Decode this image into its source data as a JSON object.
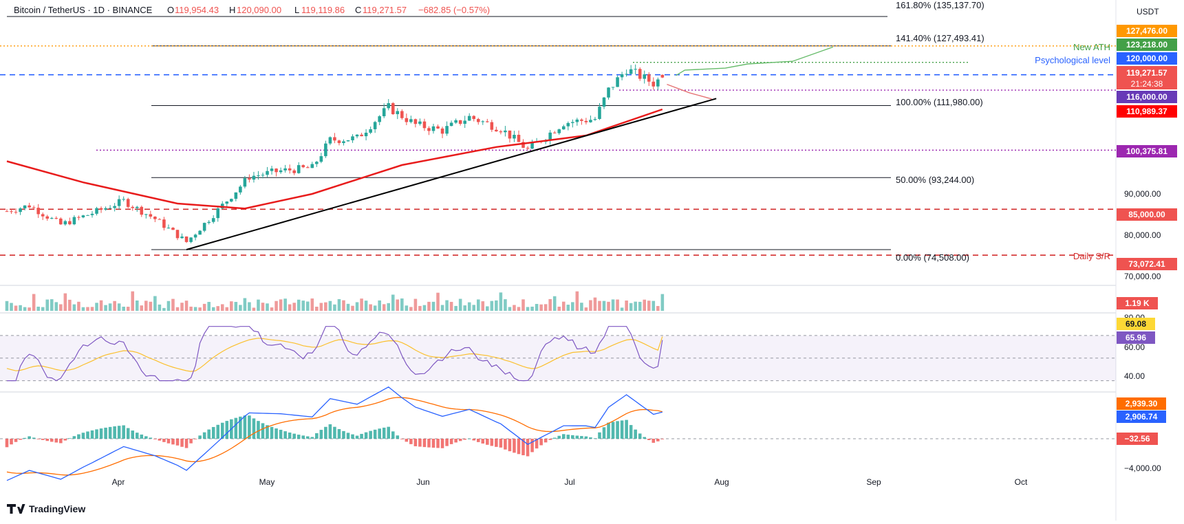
{
  "header": {
    "pair": "Bitcoin / TetherUS · 1D · BINANCE",
    "open_label": "O",
    "open": "119,954.43",
    "high_label": "H",
    "high": "120,090.00",
    "low_label": "L",
    "low": "119,119.86",
    "close_label": "C",
    "close": "119,271.57",
    "change": "−682.85 (−0.57%)"
  },
  "currency": "USDT",
  "fib_labels": [
    "161.80% (135,137.70)",
    "141.40% (127,493.41)",
    "100.00% (111,980.00)",
    "50.00% (93,244.00)",
    "0.00% (74,508.00)"
  ],
  "annotations": {
    "new_ath": "New ATH",
    "psychological": "Psychological level",
    "daily_sr": "Daily S/R"
  },
  "price_ticks": [
    "90,000.00",
    "80,000.00",
    "70,000.00"
  ],
  "rsi_ticks": [
    "80.00",
    "60.00",
    "40.00"
  ],
  "macd_ticks": [
    "−4,000.00"
  ],
  "badges": {
    "b127": "127,476.00",
    "b123": "123,218.00",
    "b120": "120,000.00",
    "last_price": "119,271.57",
    "countdown": "21:24:38",
    "b116": "116,000.00",
    "ma": "110,989.37",
    "b100": "100,375.81",
    "b85": "85,000.00",
    "b73": "73,072.41",
    "volume": "1.19 K",
    "rsi_ma": "69.08",
    "rsi": "65.96",
    "macd_signal": "2,939.30",
    "macd": "2,906.74",
    "hist": "−32.56"
  },
  "colors": {
    "up": "#26a69a",
    "down": "#ef5350",
    "ma": "#e81c1c",
    "blue_level": "#2962ff",
    "purple_level": "#9c27b0",
    "red_level": "#d32f2f",
    "orange_level": "#ff9800",
    "green_ath": "#43a047",
    "rsi": "#7e57c2",
    "rsi_ma": "#fbc02d",
    "macd": "#2962ff",
    "signal": "#ff6d00"
  },
  "x_labels": [
    "Apr",
    "May",
    "Jun",
    "Jul",
    "Aug",
    "Sep",
    "Oct"
  ],
  "brand": "TradingView",
  "chart_data": {
    "type": "candlestick",
    "title": "Bitcoin / TetherUS · 1D · BINANCE",
    "y_unit": "USDT",
    "ylim": [
      67000,
      138000
    ],
    "x_range": [
      "2025-02-26",
      "2025-10-31"
    ],
    "grid": false,
    "horizontal_levels": [
      {
        "label": "161.80%",
        "value": 135137.7,
        "style": "solid"
      },
      {
        "label": "141.40%",
        "value": 127493.41,
        "style": "solid"
      },
      {
        "label": "100.00%",
        "value": 111980.0,
        "style": "solid"
      },
      {
        "label": "50.00%",
        "value": 93244.0,
        "style": "solid"
      },
      {
        "label": "0.00%",
        "value": 74508.0,
        "style": "solid"
      },
      {
        "label": "127,476.00",
        "value": 127476.0,
        "style": "dotted",
        "color": "orange"
      },
      {
        "label": "Psychological level",
        "value": 120000.0,
        "style": "dashed",
        "color": "blue"
      },
      {
        "label": "116,000.00",
        "value": 116000.0,
        "style": "dotted",
        "color": "purple"
      },
      {
        "label": "100,375.81",
        "value": 100375.81,
        "style": "dotted",
        "color": "purple"
      },
      {
        "label": "85,000.00",
        "value": 85000.0,
        "style": "dashed",
        "color": "red"
      },
      {
        "label": "Daily S/R",
        "value": 73072.41,
        "style": "dashed",
        "color": "red"
      }
    ],
    "ath": 123218.0,
    "last": {
      "open": 119954.43,
      "high": 120090.0,
      "low": 119119.86,
      "close": 119271.57
    },
    "ma_last": 110989.37,
    "trendline": [
      [
        "2025-04-07",
        74508
      ],
      [
        "2025-08-03",
        113800
      ]
    ],
    "price_path": [
      [
        "2025-02-26",
        84500
      ],
      [
        "2025-03-03",
        86000
      ],
      [
        "2025-03-10",
        81000
      ],
      [
        "2025-03-17",
        84000
      ],
      [
        "2025-03-24",
        87200
      ],
      [
        "2025-03-31",
        82500
      ],
      [
        "2025-04-07",
        76500
      ],
      [
        "2025-04-14",
        84800
      ],
      [
        "2025-04-21",
        93500
      ],
      [
        "2025-04-28",
        95000
      ],
      [
        "2025-05-05",
        95800
      ],
      [
        "2025-05-09",
        103000
      ],
      [
        "2025-05-15",
        103500
      ],
      [
        "2025-05-22",
        111500
      ],
      [
        "2025-05-28",
        107000
      ],
      [
        "2025-06-03",
        105500
      ],
      [
        "2025-06-09",
        109000
      ],
      [
        "2025-06-16",
        106000
      ],
      [
        "2025-06-22",
        100500
      ],
      [
        "2025-06-30",
        107500
      ],
      [
        "2025-07-07",
        108500
      ],
      [
        "2025-07-10",
        116000
      ],
      [
        "2025-07-14",
        121500
      ],
      [
        "2025-07-20",
        117800
      ],
      [
        "2025-07-22",
        119271.57
      ]
    ],
    "ma_path": [
      [
        "2025-02-26",
        97500
      ],
      [
        "2025-03-15",
        92000
      ],
      [
        "2025-04-05",
        86500
      ],
      [
        "2025-04-20",
        85200
      ],
      [
        "2025-05-05",
        89000
      ],
      [
        "2025-05-25",
        96500
      ],
      [
        "2025-06-15",
        101200
      ],
      [
        "2025-07-05",
        104200
      ],
      [
        "2025-07-22",
        110989.37
      ]
    ],
    "projection": [
      [
        "2025-07-25",
        119800
      ],
      [
        "2025-07-27",
        121200
      ],
      [
        "2025-08-05",
        121700
      ],
      [
        "2025-08-10",
        122800
      ],
      [
        "2025-08-20",
        123500
      ],
      [
        "2025-08-29",
        127200
      ]
    ],
    "projection_down": [
      [
        "2025-07-23",
        117500
      ],
      [
        "2025-07-28",
        115300
      ],
      [
        "2025-08-02",
        113700
      ]
    ],
    "volume_last": "1.19 K",
    "rsi": {
      "last": 65.96,
      "ma_last": 69.08,
      "bands": [
        70,
        50,
        30
      ]
    },
    "macd": {
      "macd_last": 2906.74,
      "signal_last": 2939.3,
      "hist_last": -32.56
    }
  }
}
